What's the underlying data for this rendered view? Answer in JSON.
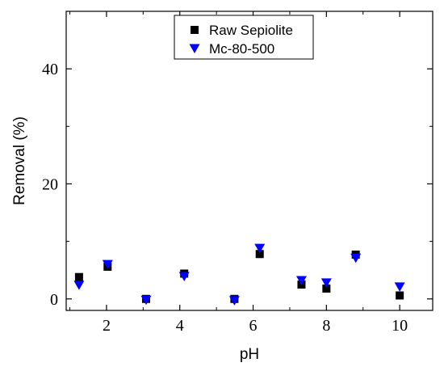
{
  "chart_data": {
    "type": "scatter",
    "title": "",
    "xlabel": "pH",
    "ylabel": "Removal (%)",
    "xlim": [
      0.9,
      10.9
    ],
    "ylim": [
      -2,
      50
    ],
    "xticks": [
      2,
      4,
      6,
      8,
      10
    ],
    "yticks": [
      0,
      20,
      40
    ],
    "grid": false,
    "legend_position": "top-center",
    "series": [
      {
        "name": "Raw Sepiolite",
        "marker": "square",
        "color": "#000000",
        "points": [
          {
            "x": 1.25,
            "y": 3.8
          },
          {
            "x": 2.03,
            "y": 5.6
          },
          {
            "x": 3.08,
            "y": 0.0
          },
          {
            "x": 4.12,
            "y": 4.4
          },
          {
            "x": 5.49,
            "y": 0.0
          },
          {
            "x": 6.18,
            "y": 7.8
          },
          {
            "x": 7.32,
            "y": 2.5
          },
          {
            "x": 8.0,
            "y": 1.8
          },
          {
            "x": 8.8,
            "y": 7.7
          },
          {
            "x": 10.0,
            "y": 0.6
          }
        ]
      },
      {
        "name": "Mc-80-500",
        "marker": "triangle-down",
        "color": "#0000ff",
        "points": [
          {
            "x": 1.25,
            "y": 2.4
          },
          {
            "x": 2.03,
            "y": 6.0
          },
          {
            "x": 3.08,
            "y": -0.2
          },
          {
            "x": 4.12,
            "y": 3.9
          },
          {
            "x": 5.49,
            "y": -0.3
          },
          {
            "x": 6.18,
            "y": 8.8
          },
          {
            "x": 7.32,
            "y": 3.2
          },
          {
            "x": 8.0,
            "y": 2.8
          },
          {
            "x": 8.8,
            "y": 7.1
          },
          {
            "x": 10.0,
            "y": 2.1
          }
        ]
      }
    ]
  }
}
